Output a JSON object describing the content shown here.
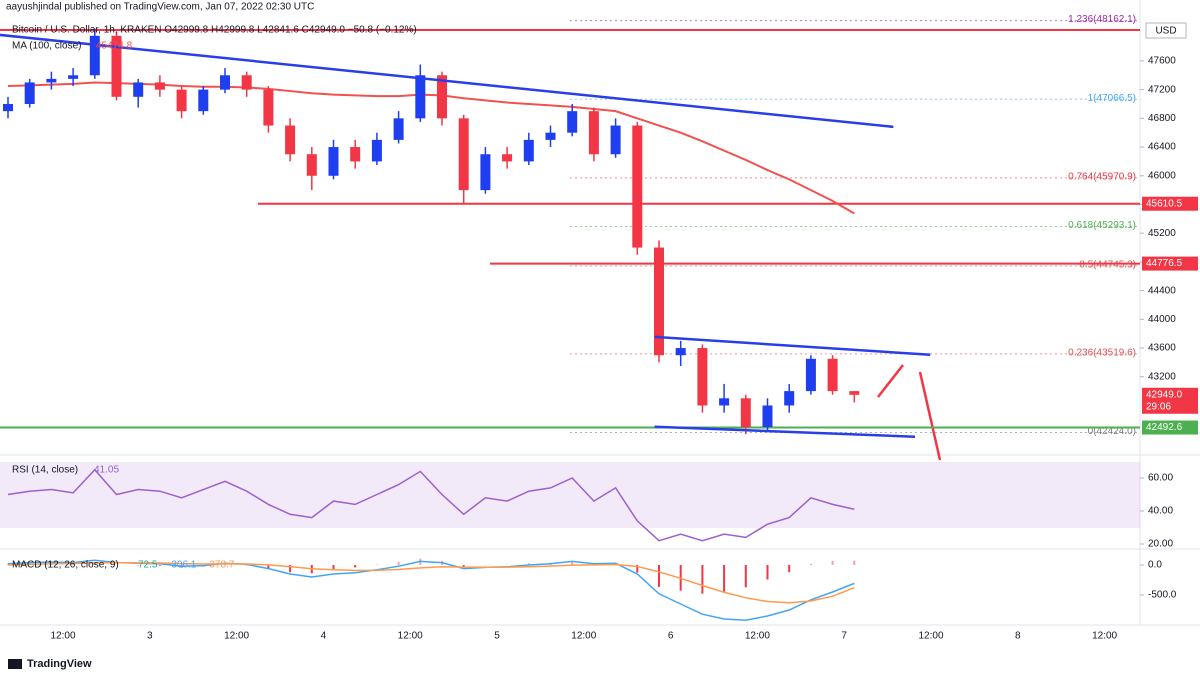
{
  "chart_data": {
    "type": "candlestick",
    "publisher": "aayushjindal published on TradingView.com, Jan 07, 2022 02:30 UTC",
    "symbol_line": "Bitcoin / U.S. Dollar, 1h, KRAKEN  O42999.8  H42999.8  L42841.6  C42949.0  −50.8 (−0.12%)",
    "ma_title": "MA (100, close)",
    "currency": "USD",
    "countdown": "29:06",
    "brand": "TradingView",
    "up_color": "#1e3ef0",
    "down_color": "#f23645",
    "ma_color": "#f0524f",
    "trend_color": "#2a3ee8",
    "ylim": [
      42110,
      48170
    ],
    "yticks": [
      43200,
      43600,
      44000,
      44400,
      44800,
      45200,
      45600,
      46000,
      46400,
      46800,
      47200,
      47600
    ],
    "time_labels": [
      "12:00",
      "3",
      "12:00",
      "4",
      "12:00",
      "5",
      "12:00",
      "6",
      "12:00",
      "7",
      "12:00",
      "8",
      "12:00"
    ],
    "candles": [
      [
        46900,
        47100,
        46800,
        47000
      ],
      [
        47000,
        47350,
        46950,
        47300
      ],
      [
        47300,
        47450,
        47200,
        47350
      ],
      [
        47350,
        47500,
        47250,
        47400
      ],
      [
        47400,
        48050,
        47350,
        47950
      ],
      [
        47950,
        48000,
        47050,
        47100
      ],
      [
        47100,
        47350,
        46950,
        47300
      ],
      [
        47300,
        47400,
        47100,
        47200
      ],
      [
        47200,
        47250,
        46800,
        46900
      ],
      [
        46900,
        47250,
        46850,
        47200
      ],
      [
        47200,
        47500,
        47150,
        47400
      ],
      [
        47400,
        47450,
        47100,
        47200
      ],
      [
        47200,
        47250,
        46600,
        46700
      ],
      [
        46700,
        46800,
        46200,
        46300
      ],
      [
        46300,
        46400,
        45800,
        46000
      ],
      [
        46000,
        46500,
        45950,
        46400
      ],
      [
        46400,
        46500,
        46100,
        46200
      ],
      [
        46200,
        46600,
        46150,
        46500
      ],
      [
        46500,
        46900,
        46450,
        46800
      ],
      [
        46800,
        47550,
        46750,
        47400
      ],
      [
        47400,
        47450,
        46700,
        46800
      ],
      [
        46800,
        46850,
        45600,
        45800
      ],
      [
        45800,
        46400,
        45750,
        46300
      ],
      [
        46300,
        46400,
        46100,
        46200
      ],
      [
        46200,
        46600,
        46150,
        46500
      ],
      [
        46500,
        46700,
        46400,
        46600
      ],
      [
        46600,
        47000,
        46550,
        46900
      ],
      [
        46900,
        46950,
        46200,
        46300
      ],
      [
        46300,
        46800,
        46250,
        46700
      ],
      [
        46700,
        46750,
        44900,
        45000
      ],
      [
        45000,
        45100,
        43400,
        43500
      ],
      [
        43500,
        43700,
        43350,
        43600
      ],
      [
        43600,
        43650,
        42700,
        42800
      ],
      [
        42800,
        43100,
        42700,
        42900
      ],
      [
        42900,
        42950,
        42400,
        42500
      ],
      [
        42500,
        42900,
        42450,
        42800
      ],
      [
        42800,
        43100,
        42700,
        43000
      ],
      [
        43000,
        43500,
        42950,
        43450
      ],
      [
        43450,
        43500,
        42950,
        43000
      ],
      [
        42999.8,
        42999.8,
        42841.6,
        42949.0
      ]
    ],
    "ma": [
      47250,
      47260,
      47270,
      47280,
      47300,
      47290,
      47280,
      47270,
      47250,
      47240,
      47240,
      47230,
      47210,
      47180,
      47150,
      47130,
      47120,
      47110,
      47110,
      47130,
      47120,
      47080,
      47050,
      47020,
      47000,
      46980,
      46960,
      46930,
      46900,
      46800,
      46700,
      46600,
      46480,
      46350,
      46220,
      46080,
      45950,
      45800,
      45650,
      45474.8
    ],
    "trendlines": [
      {
        "x": [
          -0.37,
          40.8
        ],
        "y": [
          47962,
          46681
        ]
      },
      {
        "x": [
          29.8,
          42.5
        ],
        "y": [
          43756,
          43506
        ]
      },
      {
        "x": [
          29.8,
          41.8
        ],
        "y": [
          42504,
          42365
        ]
      }
    ],
    "fib": [
      {
        "label": "1.236(48162.1)",
        "value": 48162.1,
        "color": "#9c27b0"
      },
      {
        "label": "1(47066.5)",
        "value": 47066.5,
        "color": "#42a5f5"
      },
      {
        "label": "0.764(45970.9)",
        "value": 45970.9,
        "color": "#f23645"
      },
      {
        "label": "0.618(45293.1)",
        "value": 45293.1,
        "color": "#4caf50"
      },
      {
        "label": "0.5(44745.3)",
        "value": 44745.3,
        "color": "#e05555"
      },
      {
        "label": "0.236(43519.6)",
        "value": 43519.6,
        "color": "#e05555"
      },
      {
        "label": "0(42424.0)",
        "value": 42424.0,
        "color": "#787b86"
      }
    ],
    "levels": [
      {
        "value": 45610.5,
        "color": "#f23645"
      },
      {
        "value": 44776.5,
        "color": "#f23645"
      },
      {
        "value": 42492.6,
        "color": "#4caf50"
      }
    ],
    "last_price": {
      "value": 42949.0,
      "label": "42949.0"
    },
    "rsi_title": "RSI (14, close)",
    "rsi_color": "#9c5fd0",
    "rsi": [
      50,
      52,
      53,
      51,
      65,
      50,
      53,
      52,
      48,
      53,
      58,
      52,
      44,
      38,
      36,
      46,
      44,
      50,
      56,
      64,
      50,
      38,
      48,
      46,
      52,
      54,
      60,
      46,
      54,
      34,
      22,
      26,
      22,
      26,
      24,
      32,
      36,
      48,
      44,
      41.05
    ],
    "rsi_ticks": [
      {
        "value": 60,
        "label": "60.00"
      },
      {
        "value": 40,
        "label": "40.00"
      },
      {
        "value": 20,
        "label": "20.00"
      }
    ],
    "macd_title": "MACD (12, 26, close, 9)",
    "macd": [
      20,
      40,
      50,
      40,
      80,
      40,
      30,
      20,
      -20,
      -10,
      30,
      10,
      -60,
      -150,
      -200,
      -150,
      -130,
      -80,
      -20,
      60,
      40,
      -60,
      -40,
      -30,
      0,
      20,
      60,
      20,
      30,
      -150,
      -480,
      -650,
      -820,
      -900,
      -920,
      -850,
      -750,
      -580,
      -450,
      -306.1
    ],
    "signal": [
      0,
      10,
      20,
      25,
      35,
      37,
      36,
      33,
      23,
      16,
      19,
      17,
      2,
      -28,
      -62,
      -80,
      -90,
      -88,
      -74,
      -47,
      -30,
      -36,
      -37,
      -36,
      -29,
      -19,
      -3,
      2,
      8,
      -24,
      -115,
      -222,
      -342,
      -454,
      -547,
      -608,
      -630,
      -600,
      -520,
      -378.7
    ],
    "histogram": [
      20,
      30,
      30,
      15,
      45,
      3,
      -6,
      -13,
      -43,
      -26,
      11,
      -7,
      -62,
      -122,
      -138,
      -70,
      -40,
      8,
      54,
      107,
      70,
      -24,
      -3,
      6,
      29,
      39,
      63,
      18,
      22,
      -126,
      -365,
      -428,
      -478,
      -446,
      -373,
      -242,
      -120,
      20,
      70,
      72.5
    ],
    "macd_color": "#42a5f5",
    "signal_color": "#ff9a4d",
    "macd_ticks": [
      {
        "value": 0,
        "label": "0.0"
      },
      {
        "value": -500,
        "label": "-500.0"
      }
    ]
  }
}
